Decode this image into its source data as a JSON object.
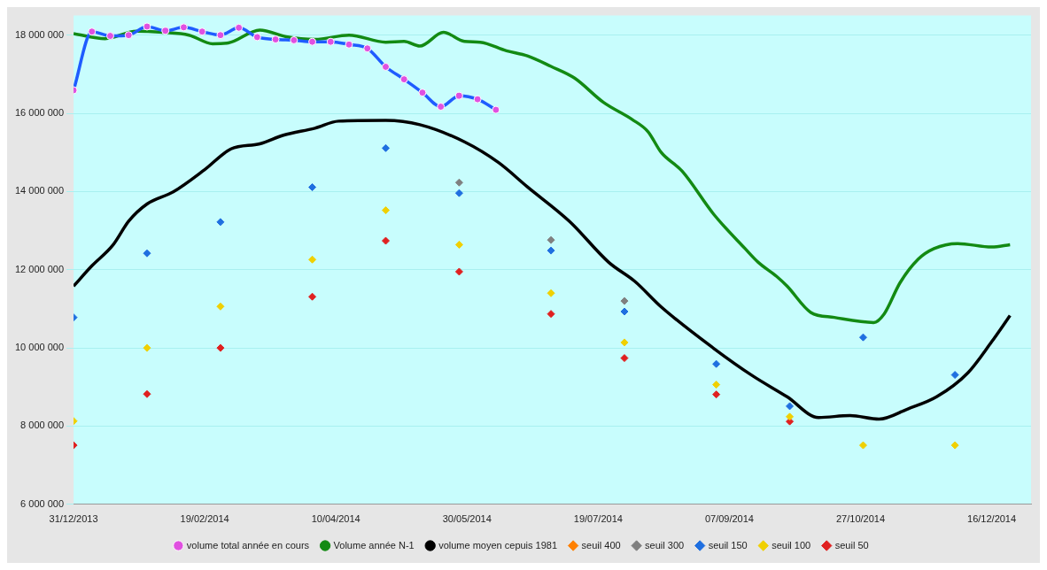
{
  "chart_data": {
    "type": "line",
    "xlim": [
      "2013-12-31",
      "2014-12-31"
    ],
    "ylim": [
      6000000,
      18500000
    ],
    "xticks": [
      {
        "value": "2013-12-31",
        "label": "31/12/2013"
      },
      {
        "value": "2014-02-19",
        "label": "19/02/2014"
      },
      {
        "value": "2014-04-10",
        "label": "10/04/2014"
      },
      {
        "value": "2014-05-30",
        "label": "30/05/2014"
      },
      {
        "value": "2014-07-19",
        "label": "19/07/2014"
      },
      {
        "value": "2014-09-07",
        "label": "07/09/2014"
      },
      {
        "value": "2014-10-27",
        "label": "27/10/2014"
      },
      {
        "value": "2014-12-16",
        "label": "16/12/2014"
      }
    ],
    "yticks": [
      {
        "value": 6000000,
        "label": "6 000 000"
      },
      {
        "value": 8000000,
        "label": "8 000 000"
      },
      {
        "value": 10000000,
        "label": "10 000 000"
      },
      {
        "value": 12000000,
        "label": "12 000 000"
      },
      {
        "value": 14000000,
        "label": "14 000 000"
      },
      {
        "value": 16000000,
        "label": "16 000 000"
      },
      {
        "value": 18000000,
        "label": "18 000 000"
      }
    ],
    "grid": "y",
    "legend": "bottom",
    "series": [
      {
        "name": "volume total année en cours",
        "type": "line",
        "color": "#1f5cff",
        "marker": "circle",
        "x": [
          "2013-12-31",
          "2014-01-07",
          "2014-01-14",
          "2014-01-21",
          "2014-01-28",
          "2014-02-04",
          "2014-02-11",
          "2014-02-18",
          "2014-02-25",
          "2014-03-04",
          "2014-03-11",
          "2014-03-18",
          "2014-03-25",
          "2014-04-01",
          "2014-04-08",
          "2014-04-15",
          "2014-04-22",
          "2014-04-29",
          "2014-05-06",
          "2014-05-13",
          "2014-05-20",
          "2014-05-27",
          "2014-06-03",
          "2014-06-10"
        ],
        "values": [
          16590000,
          18090000,
          17980000,
          18000000,
          18220000,
          18110000,
          18200000,
          18090000,
          18000000,
          18190000,
          17950000,
          17890000,
          17870000,
          17830000,
          17830000,
          17760000,
          17660000,
          17190000,
          16870000,
          16530000,
          16170000,
          16450000,
          16360000,
          16090000
        ]
      },
      {
        "name": "Volume année N-1",
        "type": "line",
        "color": "#138a13",
        "marker": "none",
        "x": [
          "2013-12-31",
          "2014-01-12",
          "2014-01-24",
          "2014-02-03",
          "2014-02-13",
          "2014-02-22",
          "2014-02-28",
          "2014-03-12",
          "2014-03-22",
          "2014-04-02",
          "2014-04-15",
          "2014-04-29",
          "2014-05-06",
          "2014-05-12",
          "2014-05-21",
          "2014-05-29",
          "2014-06-04",
          "2014-06-14",
          "2014-06-22",
          "2014-07-01",
          "2014-07-10",
          "2014-07-21",
          "2014-08-01",
          "2014-08-07",
          "2014-08-12",
          "2014-08-20",
          "2014-09-01",
          "2014-09-13",
          "2014-09-18",
          "2014-09-25",
          "2014-09-29",
          "2014-10-08",
          "2014-10-17",
          "2014-11-01",
          "2014-11-05",
          "2014-11-11",
          "2014-11-18",
          "2014-11-24",
          "2014-12-03",
          "2014-12-16",
          "2014-12-23"
        ],
        "values": [
          18040000,
          17910000,
          18100000,
          18070000,
          18000000,
          17780000,
          17800000,
          18130000,
          17960000,
          17890000,
          18000000,
          17820000,
          17840000,
          17720000,
          18070000,
          17840000,
          17820000,
          17600000,
          17470000,
          17200000,
          16900000,
          16280000,
          15840000,
          15530000,
          15000000,
          14520000,
          13420000,
          12540000,
          12190000,
          11830000,
          11580000,
          10910000,
          10780000,
          10650000,
          10870000,
          11660000,
          12270000,
          12540000,
          12670000,
          12580000,
          12640000
        ]
      },
      {
        "name": "volume moyen cepuis 1981",
        "type": "line",
        "color": "#000000",
        "marker": "none",
        "x": [
          "2013-12-31",
          "2014-01-07",
          "2014-01-15",
          "2014-01-21",
          "2014-01-28",
          "2014-02-07",
          "2014-02-19",
          "2014-03-01",
          "2014-03-12",
          "2014-03-21",
          "2014-04-02",
          "2014-04-11",
          "2014-04-29",
          "2014-05-12",
          "2014-05-29",
          "2014-06-11",
          "2014-06-22",
          "2014-07-08",
          "2014-07-23",
          "2014-08-02",
          "2014-08-12",
          "2014-09-01",
          "2014-09-16",
          "2014-09-29",
          "2014-10-11",
          "2014-10-23",
          "2014-11-03",
          "2014-11-14",
          "2014-11-25",
          "2014-12-07",
          "2014-12-16",
          "2014-12-23"
        ],
        "values": [
          11580000,
          12100000,
          12630000,
          13240000,
          13680000,
          13990000,
          14560000,
          15090000,
          15220000,
          15440000,
          15620000,
          15800000,
          15820000,
          15710000,
          15270000,
          14740000,
          14120000,
          13240000,
          12190000,
          11700000,
          11050000,
          9990000,
          9280000,
          8750000,
          8220000,
          8270000,
          8180000,
          8440000,
          8750000,
          9370000,
          10160000,
          10830000
        ]
      },
      {
        "name": "seuil 400",
        "type": "scatter",
        "color": "#ff8000",
        "marker": "diamond"
      },
      {
        "name": "seuil 300",
        "type": "scatter",
        "color": "#808080",
        "marker": "diamond",
        "x": [
          "2014-05-27",
          "2014-07-01",
          "2014-07-29"
        ],
        "values": [
          14230000,
          12760000,
          11200000
        ]
      },
      {
        "name": "seuil 150",
        "type": "scatter",
        "color": "#1f6fe0",
        "marker": "diamond",
        "x": [
          "2013-12-31",
          "2014-01-28",
          "2014-02-25",
          "2014-04-01",
          "2014-04-29",
          "2014-05-27",
          "2014-07-01",
          "2014-07-29",
          "2014-09-02",
          "2014-09-30",
          "2014-10-28",
          "2014-12-02"
        ],
        "values": [
          10780000,
          12420000,
          13220000,
          14110000,
          15110000,
          13960000,
          12490000,
          10930000,
          9590000,
          8510000,
          10270000,
          9310000
        ]
      },
      {
        "name": "seuil 100",
        "type": "scatter",
        "color": "#f0d000",
        "marker": "diamond",
        "x": [
          "2013-12-31",
          "2014-01-28",
          "2014-02-25",
          "2014-04-01",
          "2014-04-29",
          "2014-05-27",
          "2014-07-01",
          "2014-07-29",
          "2014-09-02",
          "2014-09-30",
          "2014-10-28",
          "2014-12-02"
        ],
        "values": [
          8130000,
          10000000,
          11060000,
          12260000,
          13520000,
          12640000,
          11400000,
          10140000,
          9060000,
          8240000,
          7510000,
          7510000
        ]
      },
      {
        "name": "seuil 50",
        "type": "scatter",
        "color": "#e02020",
        "marker": "diamond",
        "x": [
          "2013-12-31",
          "2014-01-28",
          "2014-02-25",
          "2014-04-01",
          "2014-04-29",
          "2014-05-27",
          "2014-07-01",
          "2014-07-29",
          "2014-09-02",
          "2014-09-30"
        ],
        "values": [
          7510000,
          8820000,
          10000000,
          11310000,
          12740000,
          11950000,
          10870000,
          9740000,
          8810000,
          8120000
        ]
      }
    ]
  }
}
